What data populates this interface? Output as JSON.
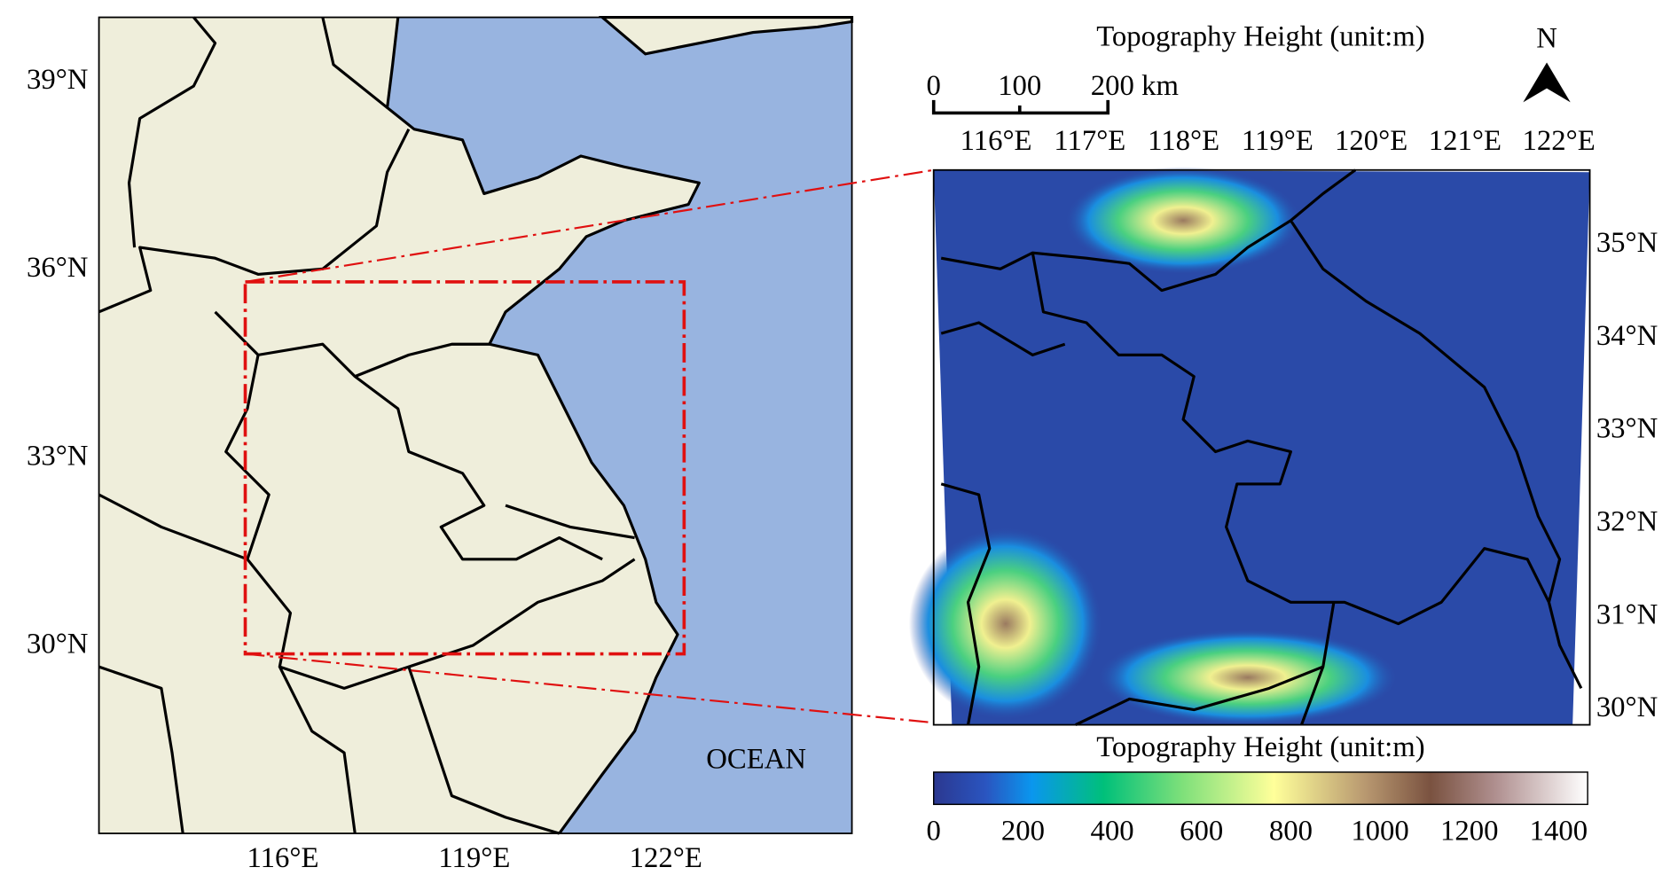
{
  "left_map": {
    "lat_labels": [
      "39°N",
      "36°N",
      "33°N",
      "30°N"
    ],
    "lon_labels": [
      "116°E",
      "119°E",
      "122°E"
    ],
    "ocean_label": "OCEAN"
  },
  "right_map": {
    "title": "Topography Height (unit:m)",
    "scale_bar_labels": [
      "0",
      "100",
      "200 km"
    ],
    "north_label": "N",
    "lon_labels": [
      "116°E",
      "117°E",
      "118°E",
      "119°E",
      "120°E",
      "121°E",
      "122°E"
    ],
    "lat_labels": [
      "35°N",
      "34°N",
      "33°N",
      "32°N",
      "31°N",
      "30°N"
    ]
  },
  "colorbar": {
    "title": "Topography Height (unit:m)",
    "ticks": [
      0,
      200,
      400,
      600,
      800,
      1000,
      1200,
      1400
    ]
  }
}
